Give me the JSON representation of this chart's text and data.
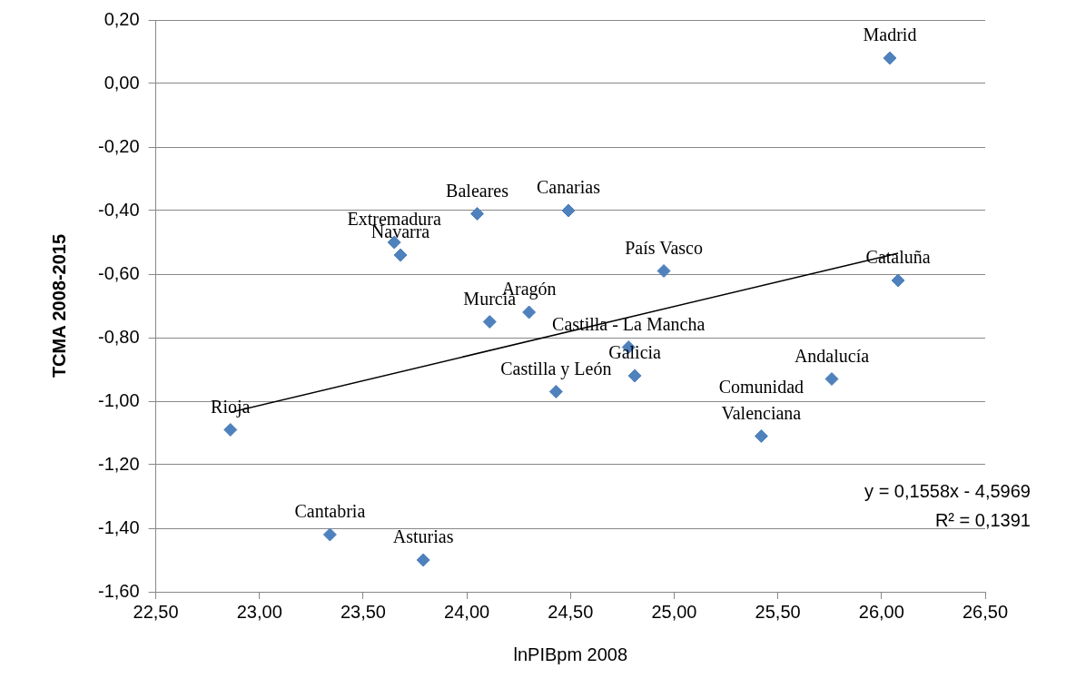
{
  "chart_data": {
    "type": "scatter",
    "xlabel": "lnPIBpm 2008",
    "ylabel": "TCMA 2008-2015",
    "xlim": [
      22.5,
      26.5
    ],
    "ylim": [
      -1.6,
      0.2
    ],
    "xticks": [
      {
        "value": 22.5,
        "label": "22,50"
      },
      {
        "value": 23,
        "label": "23,00"
      },
      {
        "value": 23.5,
        "label": "23,50"
      },
      {
        "value": 24,
        "label": "24,00"
      },
      {
        "value": 24.5,
        "label": "24,50"
      },
      {
        "value": 25,
        "label": "25,00"
      },
      {
        "value": 25.5,
        "label": "25,50"
      },
      {
        "value": 26,
        "label": "26,00"
      },
      {
        "value": 26.5,
        "label": "26,50"
      }
    ],
    "yticks": [
      {
        "value": 0.2,
        "label": "0,20"
      },
      {
        "value": 0,
        "label": "0,00"
      },
      {
        "value": -0.2,
        "label": "-0,20"
      },
      {
        "value": -0.4,
        "label": "-0,40"
      },
      {
        "value": -0.6,
        "label": "-0,60"
      },
      {
        "value": -0.8,
        "label": "-0,80"
      },
      {
        "value": -1,
        "label": "-1,00"
      },
      {
        "value": -1.2,
        "label": "-1,20"
      },
      {
        "value": -1.4,
        "label": "-1,40"
      },
      {
        "value": -1.6,
        "label": "-1,60"
      }
    ],
    "grid": "y",
    "legend": false,
    "series": [
      {
        "marker": "diamond",
        "color": "#4f81bd",
        "x": [
          26.04,
          26.08,
          25.76,
          25.42,
          24.95,
          24.78,
          24.81,
          24.43,
          24.49,
          24.05,
          24.3,
          24.11,
          23.65,
          23.68,
          22.86,
          23.34,
          23.79
        ],
        "values": [
          0.08,
          -0.62,
          -0.93,
          -1.11,
          -0.59,
          -0.83,
          -0.92,
          -0.97,
          -0.4,
          -0.41,
          -0.72,
          -0.75,
          -0.5,
          -0.54,
          -1.09,
          -1.42,
          -1.5
        ]
      },
      {
        "type": "line",
        "marker": "none",
        "color": "#000000",
        "x": [
          22.86,
          26.08
        ],
        "values": [
          -1.035,
          -0.534
        ]
      }
    ],
    "annotations": [
      {
        "text": "Madrid",
        "x": 26.04,
        "y": 0.08
      },
      {
        "text": "Cataluña",
        "x": 26.08,
        "y": -0.62
      },
      {
        "text": "Andalucía",
        "x": 25.76,
        "y": -0.93
      },
      {
        "text": "Comunidad Valenciana",
        "x": 25.42,
        "y": -1.11
      },
      {
        "text": "País Vasco",
        "x": 24.95,
        "y": -0.59
      },
      {
        "text": "Castilla - La Mancha",
        "x": 24.78,
        "y": -0.83
      },
      {
        "text": "Galicia",
        "x": 24.81,
        "y": -0.92
      },
      {
        "text": "Castilla y León",
        "x": 24.43,
        "y": -0.97
      },
      {
        "text": "Canarias",
        "x": 24.49,
        "y": -0.4
      },
      {
        "text": "Baleares",
        "x": 24.05,
        "y": -0.41
      },
      {
        "text": "Aragón",
        "x": 24.3,
        "y": -0.72
      },
      {
        "text": "Murcia",
        "x": 24.11,
        "y": -0.75
      },
      {
        "text": "Extremadura",
        "x": 23.65,
        "y": -0.5
      },
      {
        "text": "Navarra",
        "x": 23.68,
        "y": -0.54
      },
      {
        "text": "Rioja",
        "x": 22.86,
        "y": -1.09
      },
      {
        "text": "Cantabria",
        "x": 23.34,
        "y": -1.42
      },
      {
        "text": "Asturias",
        "x": 23.79,
        "y": -1.5
      },
      "y = 0,1558x - 4,5969",
      "R² = 0,1391"
    ]
  }
}
